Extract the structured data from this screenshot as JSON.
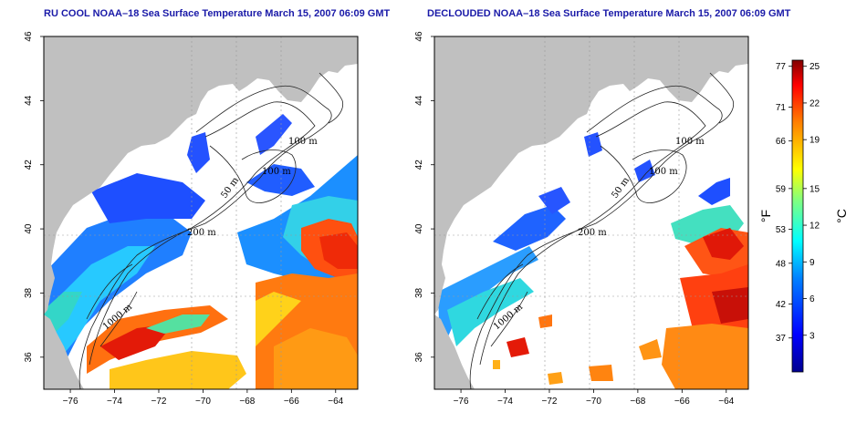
{
  "panels": [
    {
      "title": "RU COOL NOAA–18 Sea Surface Temperature March 15, 2007 06:09 GMT",
      "variant": "raw"
    },
    {
      "title": "DECLOUDED NOAA–18 Sea Surface Temperature March 15, 2007 06:09 GMT",
      "variant": "declouded"
    }
  ],
  "axes": {
    "x_ticks": [
      "−76",
      "−74",
      "−72",
      "−70",
      "−68",
      "−66",
      "−64"
    ],
    "x_values": [
      -76,
      -74,
      -72,
      -70,
      -68,
      -66,
      -64
    ],
    "y_ticks": [
      "36",
      "38",
      "40",
      "42",
      "44",
      "46"
    ],
    "y_values": [
      36,
      38,
      40,
      42,
      44,
      46
    ],
    "lon_range": [
      -77.2,
      -63.0
    ],
    "lat_range": [
      35.0,
      46.0
    ],
    "grid": "dotted"
  },
  "contours": {
    "labels": [
      "100 m",
      "100 m",
      "50 m",
      "200 m",
      "1000 m"
    ]
  },
  "colorbar": {
    "fahrenheit_ticks": [
      "77",
      "71",
      "66",
      "59",
      "53",
      "48",
      "42",
      "37"
    ],
    "fahrenheit_values": [
      77,
      71,
      66,
      59,
      53,
      48,
      42,
      37
    ],
    "celsius_ticks": [
      "25",
      "22",
      "19",
      "15",
      "12",
      "9",
      "6",
      "3"
    ],
    "celsius_values": [
      25,
      22,
      19,
      15,
      12,
      9,
      6,
      3
    ],
    "unit_f": "°F",
    "unit_c": "°C",
    "range_c": [
      0,
      25.5
    ],
    "colors": [
      "#00008f",
      "#0000ff",
      "#0080ff",
      "#00ffff",
      "#80ff80",
      "#ffff00",
      "#ff8000",
      "#ff0000",
      "#800000"
    ]
  },
  "colors": {
    "land": "#c0c0c0",
    "water_nodata": "#ffffff",
    "title": "#1a1aa8"
  }
}
